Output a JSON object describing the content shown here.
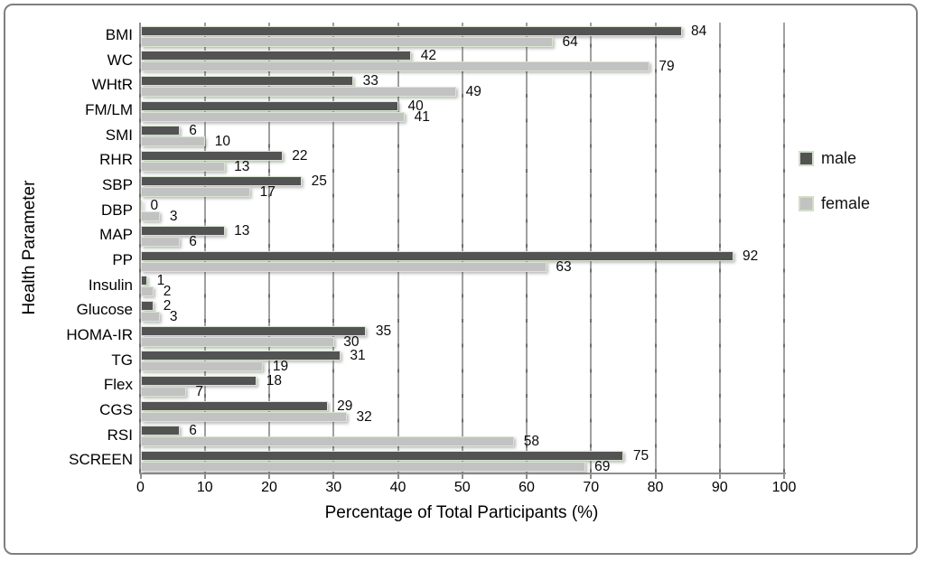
{
  "chart_data": {
    "type": "bar",
    "orientation": "horizontal",
    "title": "",
    "xlabel": "Percentage of Total Participants (%)",
    "ylabel": "Health Parameter",
    "xlim": [
      0,
      100
    ],
    "xticks": [
      0,
      10,
      20,
      30,
      40,
      50,
      60,
      70,
      80,
      90,
      100
    ],
    "grid": true,
    "legend_position": "right",
    "categories": [
      "BMI",
      "WC",
      "WHtR",
      "FM/LM",
      "SMI",
      "RHR",
      "SBP",
      "DBP",
      "MAP",
      "PP",
      "Insulin",
      "Glucose",
      "HOMA-IR",
      "TG",
      "Flex",
      "CGS",
      "RSI",
      "SCREEN"
    ],
    "series": [
      {
        "name": "male",
        "color": "#535353",
        "values": [
          84,
          42,
          33,
          40,
          6,
          22,
          25,
          0,
          13,
          92,
          1,
          2,
          35,
          31,
          18,
          29,
          6,
          75
        ]
      },
      {
        "name": "female",
        "color": "#c2c2c2",
        "values": [
          64,
          79,
          49,
          41,
          10,
          13,
          17,
          3,
          6,
          63,
          2,
          3,
          30,
          19,
          7,
          32,
          58,
          69
        ]
      }
    ]
  },
  "colors": {
    "bar_border": "#d8e6d0",
    "gridline": "#a0a0a0",
    "gridline_dash": "#6f6f6f",
    "axis": "#8f8f8f",
    "frame_border": "#7f7f7f",
    "legend_swatch_border": "#cfe0c6",
    "background": "#ffffff"
  }
}
